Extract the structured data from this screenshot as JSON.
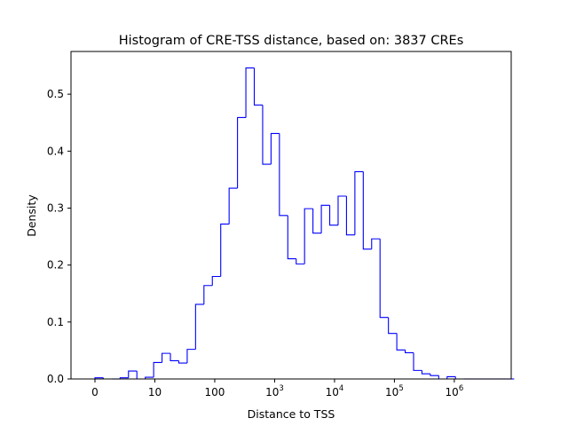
{
  "chart_data": {
    "type": "histogram",
    "title": "Histogram of CRE-TSS distance, based on: 3837 CREs",
    "xlabel": "Distance to TSS",
    "ylabel": "Density",
    "x_scale": "symlog",
    "xlim": [
      -0.4,
      6.95
    ],
    "ylim": [
      0,
      0.575
    ],
    "grid": false,
    "legend": "none",
    "line_color": "#0000ff",
    "x_ticks": [
      {
        "value": 0,
        "label": "0"
      },
      {
        "value": 10,
        "label": "10"
      },
      {
        "value": 100,
        "label": "100"
      },
      {
        "value": 1000,
        "label": "10",
        "exponent": "3"
      },
      {
        "value": 10000,
        "label": "10",
        "exponent": "4"
      },
      {
        "value": 100000,
        "label": "10",
        "exponent": "5"
      },
      {
        "value": 1000000,
        "label": "10",
        "exponent": "6"
      }
    ],
    "y_ticks": [
      {
        "value": 0.0,
        "label": "0.0"
      },
      {
        "value": 0.1,
        "label": "0.1"
      },
      {
        "value": 0.2,
        "label": "0.2"
      },
      {
        "value": 0.3,
        "label": "0.3"
      },
      {
        "value": 0.4,
        "label": "0.4"
      },
      {
        "value": 0.5,
        "label": "0.5"
      }
    ],
    "bin_edges": [
      0,
      0.14,
      0.28,
      0.42,
      0.56,
      0.7,
      0.84,
      0.98,
      1.12,
      1.26,
      1.4,
      1.54,
      1.68,
      1.82,
      1.96,
      2.1,
      2.24,
      2.38,
      2.52,
      2.66,
      2.8,
      2.94,
      3.08,
      3.22,
      3.36,
      3.5,
      3.64,
      3.78,
      3.92,
      4.06,
      4.2,
      4.34,
      4.48,
      4.62,
      4.76,
      4.9,
      5.04,
      5.18,
      5.32,
      5.46,
      5.6,
      5.74,
      5.88,
      6.02,
      6.16,
      6.3,
      6.44,
      6.58,
      6.72,
      6.86,
      7.0
    ],
    "values": [
      0.002,
      0.0,
      0.0,
      0.002,
      0.014,
      0.0,
      0.003,
      0.029,
      0.045,
      0.032,
      0.028,
      0.052,
      0.131,
      0.164,
      0.18,
      0.272,
      0.335,
      0.459,
      0.546,
      0.481,
      0.377,
      0.431,
      0.287,
      0.211,
      0.202,
      0.299,
      0.256,
      0.305,
      0.27,
      0.321,
      0.253,
      0.364,
      0.228,
      0.246,
      0.108,
      0.08,
      0.051,
      0.046,
      0.015,
      0.009,
      0.006,
      0.0,
      0.004,
      0.0,
      0.0,
      0.0,
      0.0,
      0.0,
      0.0,
      0.0
    ]
  }
}
